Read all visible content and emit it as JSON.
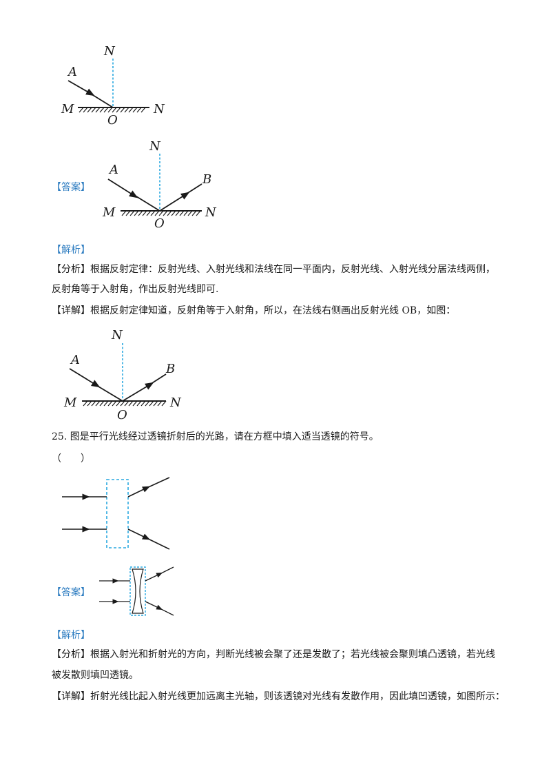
{
  "fig1": {
    "normal_top": "N",
    "incident": "A",
    "left_surface": "M",
    "right_surface": "N",
    "origin": "O"
  },
  "answer1": {
    "tag": "【答案】",
    "fig": {
      "normal_top": "N",
      "incident": "A",
      "reflected": "B",
      "left_surface": "M",
      "right_surface": "N",
      "origin": "O"
    }
  },
  "analysis1": {
    "tag": "【解析】",
    "analysis_tag": "【分析】",
    "analysis_line1": "根据反射定律：反射光线、入射光线和法线在同一平面内，反射光线、入射光线分居法线两侧，",
    "analysis_line2": "反射角等于入射角，作出反射光线即可.",
    "detail_tag": "【详解】",
    "detail_text": "根据反射定律知道，反射角等于入射角，所以，在法线右侧画出反射光线 OB，如图："
  },
  "fig3": {
    "normal_top": "N",
    "incident": "A",
    "reflected": "B",
    "left_surface": "M",
    "right_surface": "N",
    "origin": "O"
  },
  "q25": {
    "number": "25.",
    "text": "图是平行光线经过透镜折射后的光路，请在方框中填入适当透镜的符号。",
    "blank": "（　　）"
  },
  "answer2": {
    "tag": "【答案】"
  },
  "analysis2": {
    "tag": "【解析】",
    "analysis_tag": "【分析】",
    "analysis_line1": "根据入射光和折射光的方向，判断光线被会聚了还是发散了；若光线被会聚则填凸透镜，若光线",
    "analysis_line2": "被发散则填凹透镜。",
    "detail_tag": "【详解】",
    "detail_text": "折射光线比起入射光线更加远离主光轴，则该透镜对光线有发散作用，因此填凹透镜，如图所示："
  },
  "colors": {
    "tag_blue": "#2b7bc0",
    "dashed_blue": "#29a8e0",
    "ink": "#1a1a1a"
  }
}
